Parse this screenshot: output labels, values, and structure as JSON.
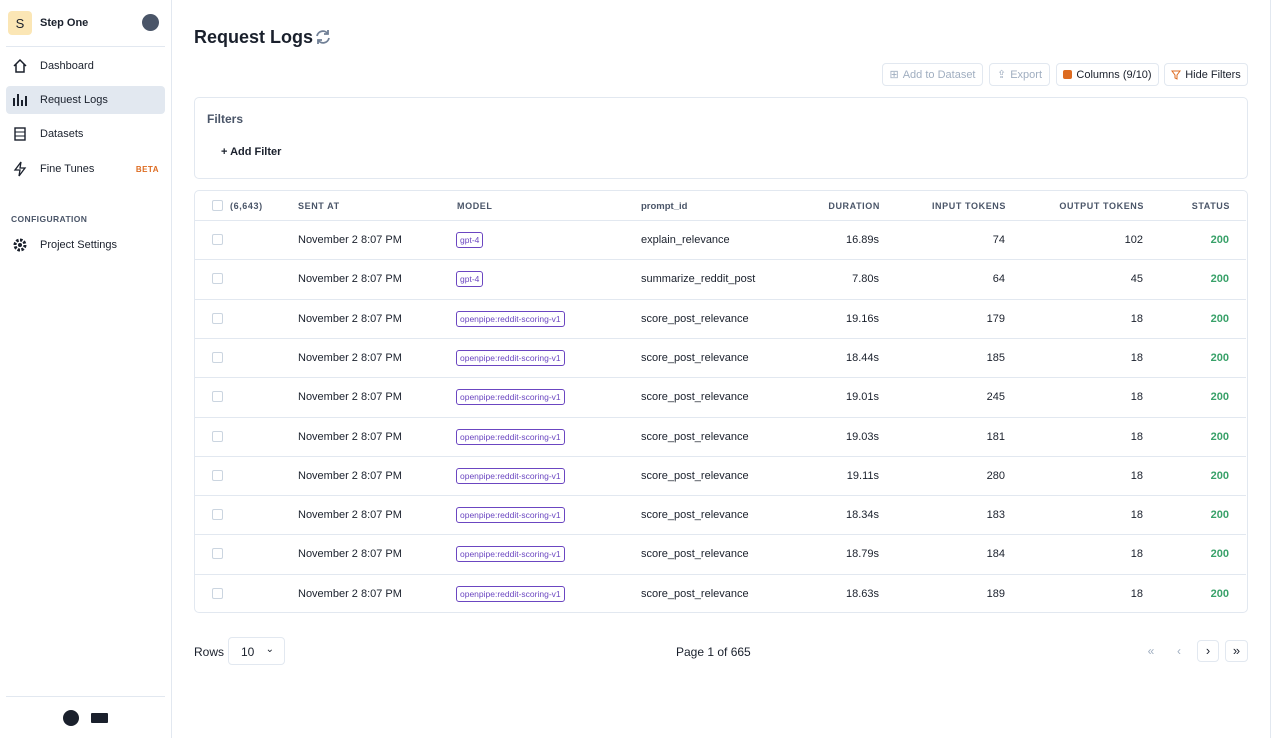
{
  "sidebar": {
    "project_initial": "S",
    "project_name": "Step One",
    "nav": [
      "Dashboard",
      "Request Logs",
      "Datasets",
      "Fine Tunes"
    ],
    "beta_badge": "BETA",
    "section": "CONFIGURATION",
    "settings": "Project Settings"
  },
  "header": {
    "title": "Request Logs",
    "buttons": [
      "Add to Dataset",
      "Export",
      "Columns (9/10)",
      "Hide Filters"
    ]
  },
  "filters": {
    "title": "Filters",
    "add_filter": "Add Filter"
  },
  "table": {
    "count": "(6,643)",
    "headers": [
      "SENT AT",
      "MODEL",
      "prompt_id",
      "DURATION",
      "INPUT TOKENS",
      "OUTPUT TOKENS",
      "STATUS"
    ],
    "rows": [
      [
        "November 2 8:07 PM",
        "gpt-4",
        "explain_relevance",
        "16.89s",
        74,
        102,
        200
      ],
      [
        "November 2 8:07 PM",
        "gpt-4",
        "summarize_reddit_post",
        "7.80s",
        64,
        45,
        200
      ],
      [
        "November 2 8:07 PM",
        "openpipe:reddit-scoring-v1",
        "score_post_relevance",
        "19.16s",
        179,
        18,
        200
      ],
      [
        "November 2 8:07 PM",
        "openpipe:reddit-scoring-v1",
        "score_post_relevance",
        "18.44s",
        185,
        18,
        200
      ],
      [
        "November 2 8:07 PM",
        "openpipe:reddit-scoring-v1",
        "score_post_relevance",
        "19.01s",
        245,
        18,
        200
      ],
      [
        "November 2 8:07 PM",
        "openpipe:reddit-scoring-v1",
        "score_post_relevance",
        "19.03s",
        181,
        18,
        200
      ],
      [
        "November 2 8:07 PM",
        "openpipe:reddit-scoring-v1",
        "score_post_relevance",
        "19.11s",
        280,
        18,
        200
      ],
      [
        "November 2 8:07 PM",
        "openpipe:reddit-scoring-v1",
        "score_post_relevance",
        "18.34s",
        183,
        18,
        200
      ],
      [
        "November 2 8:07 PM",
        "openpipe:reddit-scoring-v1",
        "score_post_relevance",
        "18.79s",
        184,
        18,
        200
      ],
      [
        "November 2 8:07 PM",
        "openpipe:reddit-scoring-v1",
        "score_post_relevance",
        "18.63s",
        189,
        18,
        200
      ]
    ]
  },
  "footer": {
    "rows_label": "Rows",
    "rows_value": "10",
    "page": "Page 1 of 665"
  }
}
